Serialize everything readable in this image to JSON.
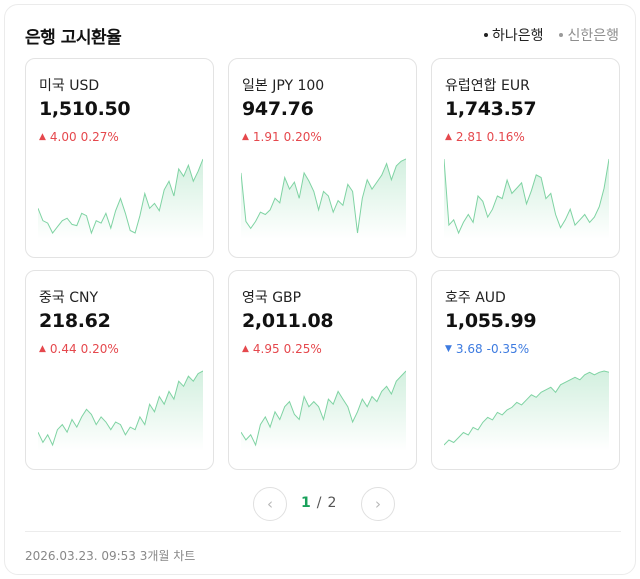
{
  "title": "은행 고시환율",
  "bank_tabs": [
    {
      "label": "하나은행",
      "active": true
    },
    {
      "label": "신한은행",
      "active": false
    }
  ],
  "cards": [
    {
      "name": "미국 USD",
      "price": "1,510.50",
      "change": "4.00",
      "percent": "0.27%",
      "direction": "up",
      "trend": [
        40,
        30,
        28,
        20,
        25,
        30,
        32,
        27,
        26,
        36,
        34,
        20,
        30,
        28,
        36,
        24,
        38,
        48,
        36,
        22,
        20,
        34,
        52,
        40,
        44,
        38,
        55,
        62,
        50,
        72,
        66,
        75,
        62,
        70,
        80
      ]
    },
    {
      "name": "일본 JPY 100",
      "price": "947.76",
      "change": "1.91",
      "percent": "0.20%",
      "direction": "up",
      "trend": [
        62,
        20,
        14,
        20,
        28,
        26,
        30,
        40,
        36,
        58,
        48,
        54,
        40,
        62,
        55,
        46,
        30,
        46,
        42,
        28,
        38,
        34,
        52,
        46,
        10,
        40,
        56,
        48,
        54,
        60,
        70,
        56,
        68,
        72,
        74
      ]
    },
    {
      "name": "유럽연합 EUR",
      "price": "1,743.57",
      "change": "2.81",
      "percent": "0.16%",
      "direction": "up",
      "trend": [
        72,
        22,
        26,
        16,
        24,
        30,
        24,
        44,
        40,
        28,
        34,
        44,
        42,
        56,
        46,
        50,
        54,
        38,
        48,
        60,
        58,
        42,
        46,
        30,
        20,
        26,
        34,
        22,
        26,
        30,
        24,
        28,
        36,
        50,
        72
      ]
    },
    {
      "name": "중국 CNY",
      "price": "218.62",
      "change": "0.44",
      "percent": "0.20%",
      "direction": "up",
      "trend": [
        18,
        10,
        16,
        8,
        20,
        24,
        18,
        28,
        22,
        30,
        36,
        32,
        24,
        30,
        26,
        20,
        26,
        24,
        16,
        22,
        20,
        30,
        24,
        40,
        34,
        46,
        40,
        50,
        44,
        58,
        54,
        62,
        58,
        64,
        66
      ]
    },
    {
      "name": "영국 GBP",
      "price": "2,011.08",
      "change": "4.95",
      "percent": "0.25%",
      "direction": "up",
      "trend": [
        20,
        14,
        18,
        10,
        26,
        32,
        24,
        36,
        30,
        40,
        44,
        34,
        30,
        48,
        40,
        44,
        40,
        30,
        46,
        42,
        52,
        46,
        40,
        28,
        36,
        46,
        40,
        48,
        44,
        52,
        56,
        50,
        60,
        64,
        68
      ]
    },
    {
      "name": "호주 AUD",
      "price": "1,055.99",
      "change": "3.68",
      "percent": "-0.35%",
      "direction": "down",
      "trend": [
        12,
        16,
        14,
        18,
        22,
        20,
        26,
        24,
        30,
        34,
        32,
        38,
        36,
        40,
        42,
        46,
        44,
        48,
        52,
        50,
        54,
        56,
        58,
        54,
        60,
        62,
        64,
        66,
        64,
        68,
        70,
        68,
        70,
        71,
        70
      ]
    }
  ],
  "pager": {
    "current": "1",
    "separator": "/",
    "total": "2"
  },
  "footer": "2026.03.23. 09:53 3개월 차트",
  "colors": {
    "up": "#e5484d",
    "down": "#3d7be0",
    "line": "#7fd3a3",
    "accent": "#19a15b"
  },
  "icons": {
    "prev": "chevron-left-icon",
    "next": "chevron-right-icon"
  }
}
